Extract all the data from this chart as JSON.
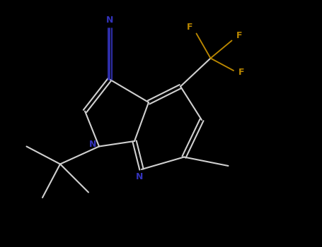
{
  "bg_color": "#000000",
  "bond_color": "#d0d0d0",
  "nitrogen_color": "#3333bb",
  "fluorine_color": "#bb8800",
  "bond_width": 1.5,
  "figsize": [
    4.55,
    3.5
  ],
  "dpi": 100,
  "xlim": [
    0,
    9.1
  ],
  "ylim": [
    0,
    7.0
  ]
}
